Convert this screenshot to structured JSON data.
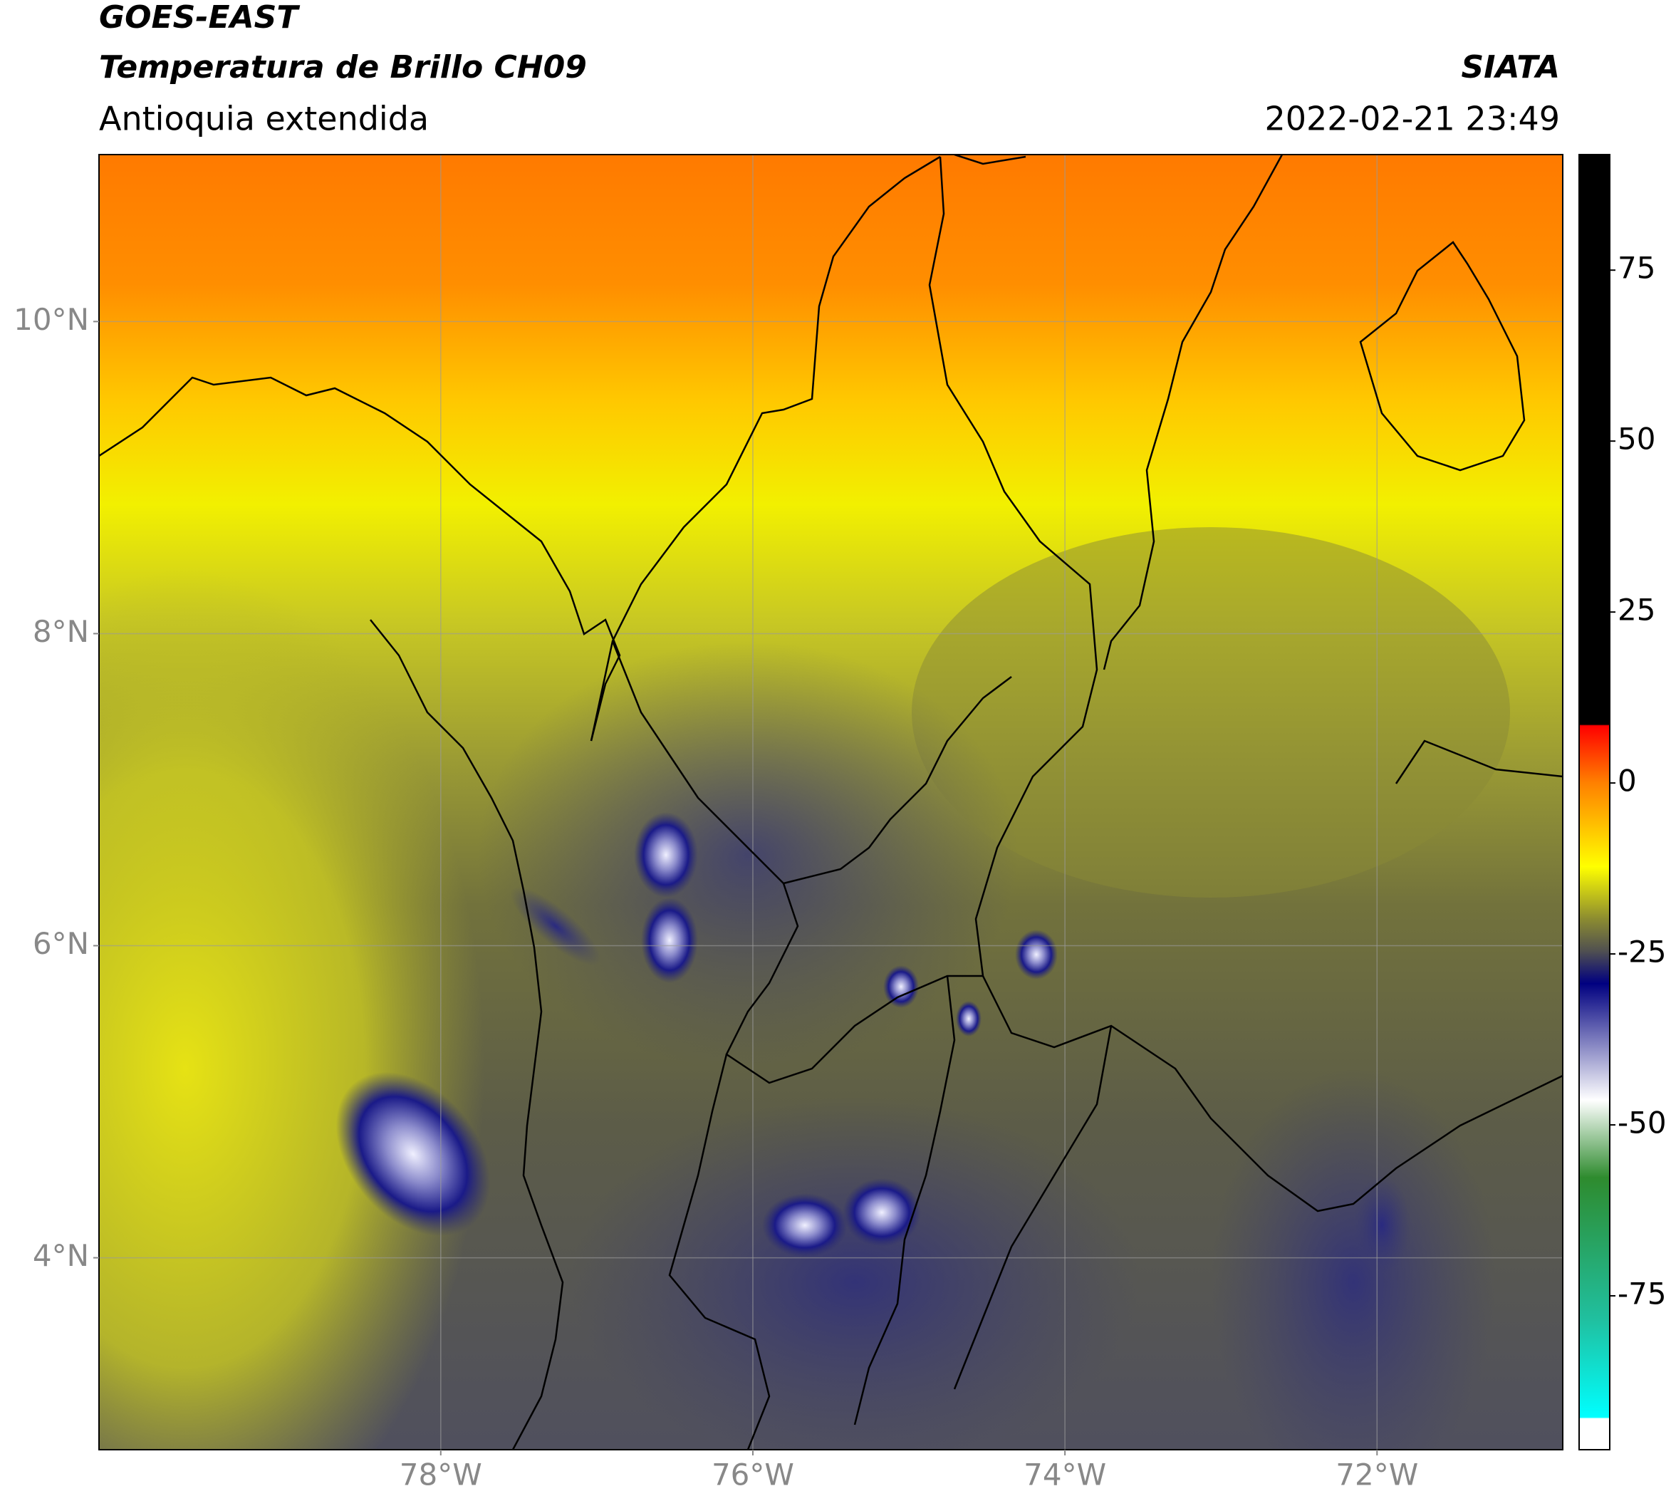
{
  "header": {
    "title": "GOES-EAST",
    "subtitle": "Temperatura de Brillo CH09",
    "region": "Antioquia extendida",
    "source": "SIATA",
    "datetime": "2022-02-21 23:49"
  },
  "map": {
    "xlim": [
      -80.19,
      -70.81
    ],
    "ylim": [
      2.77,
      11.07
    ],
    "xticks": [
      {
        "value": -78,
        "label": "78°W"
      },
      {
        "value": -76,
        "label": "76°W"
      },
      {
        "value": -74,
        "label": "74°W"
      },
      {
        "value": -72,
        "label": "72°W"
      }
    ],
    "yticks": [
      {
        "value": 10,
        "label": "10°N"
      },
      {
        "value": 8,
        "label": "8°N"
      },
      {
        "value": 6,
        "label": "6°N"
      },
      {
        "value": 4,
        "label": "4°N"
      }
    ],
    "grid": true
  },
  "colorbar": {
    "lim": [
      -97.5,
      91.9
    ],
    "ticks": [
      75,
      50,
      25,
      0,
      -25,
      -50,
      -75
    ]
  }
}
